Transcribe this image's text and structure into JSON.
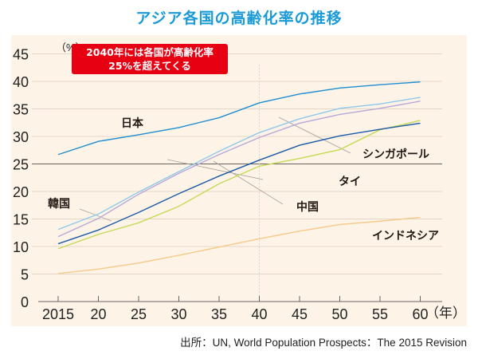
{
  "title": "アジア各国の高齢化率の推移",
  "callout": {
    "line1": "2040年には各国が高齢化率",
    "line2": "25%を超えてくる",
    "color": "#e60012"
  },
  "source": "出所：UN, World Population Prospects：The 2015 Revision",
  "chart_data": {
    "type": "line",
    "title": "アジア各国の高齢化率の推移",
    "xlabel": "（年）",
    "ylabel": "（%）",
    "x": [
      2015,
      2020,
      2025,
      2030,
      2035,
      2040,
      2045,
      2050,
      2055,
      2060
    ],
    "x_tick_labels": [
      "2015",
      "20",
      "25",
      "30",
      "35",
      "40",
      "45",
      "50",
      "55",
      "60"
    ],
    "y_ticks": [
      0,
      5,
      10,
      15,
      20,
      25,
      30,
      35,
      40,
      45
    ],
    "ylim": [
      0,
      45
    ],
    "grid": true,
    "reference_line": 25,
    "series": [
      {
        "name": "日本",
        "color": "#1f8dd0",
        "values": [
          26.7,
          29.1,
          30.3,
          31.6,
          33.4,
          36.1,
          37.7,
          38.8,
          39.4,
          39.9
        ]
      },
      {
        "name": "シンガポール",
        "color": "#8fc7ea",
        "values": [
          13.1,
          15.9,
          19.9,
          23.6,
          27.3,
          30.7,
          33.2,
          35.1,
          35.9,
          37.1
        ]
      },
      {
        "name": "韓国",
        "color": "#b8a8d8",
        "values": [
          11.8,
          15.1,
          19.5,
          23.3,
          26.7,
          29.8,
          32.4,
          34.0,
          35.1,
          36.4
        ]
      },
      {
        "name": "中国",
        "color": "#1b5aa8",
        "values": [
          10.5,
          13.0,
          16.2,
          19.6,
          22.8,
          25.7,
          28.4,
          30.1,
          31.3,
          32.4
        ]
      },
      {
        "name": "タイ",
        "color": "#c5d957",
        "values": [
          9.6,
          12.2,
          14.3,
          17.3,
          21.4,
          24.6,
          26.0,
          27.6,
          31.2,
          32.9
        ]
      },
      {
        "name": "インドネシア",
        "color": "#f7c98a",
        "values": [
          5.1,
          5.9,
          7.0,
          8.4,
          9.9,
          11.4,
          12.8,
          14.0,
          14.6,
          15.3
        ]
      }
    ],
    "annotations": [
      {
        "text": "日本",
        "series": "日本"
      },
      {
        "text": "韓国",
        "series": "韓国"
      },
      {
        "text": "シンガポール",
        "series": "シンガポール"
      },
      {
        "text": "タイ",
        "series": "タイ"
      },
      {
        "text": "中国",
        "series": "中国"
      },
      {
        "text": "インドネシア",
        "series": "インドネシア"
      }
    ]
  }
}
